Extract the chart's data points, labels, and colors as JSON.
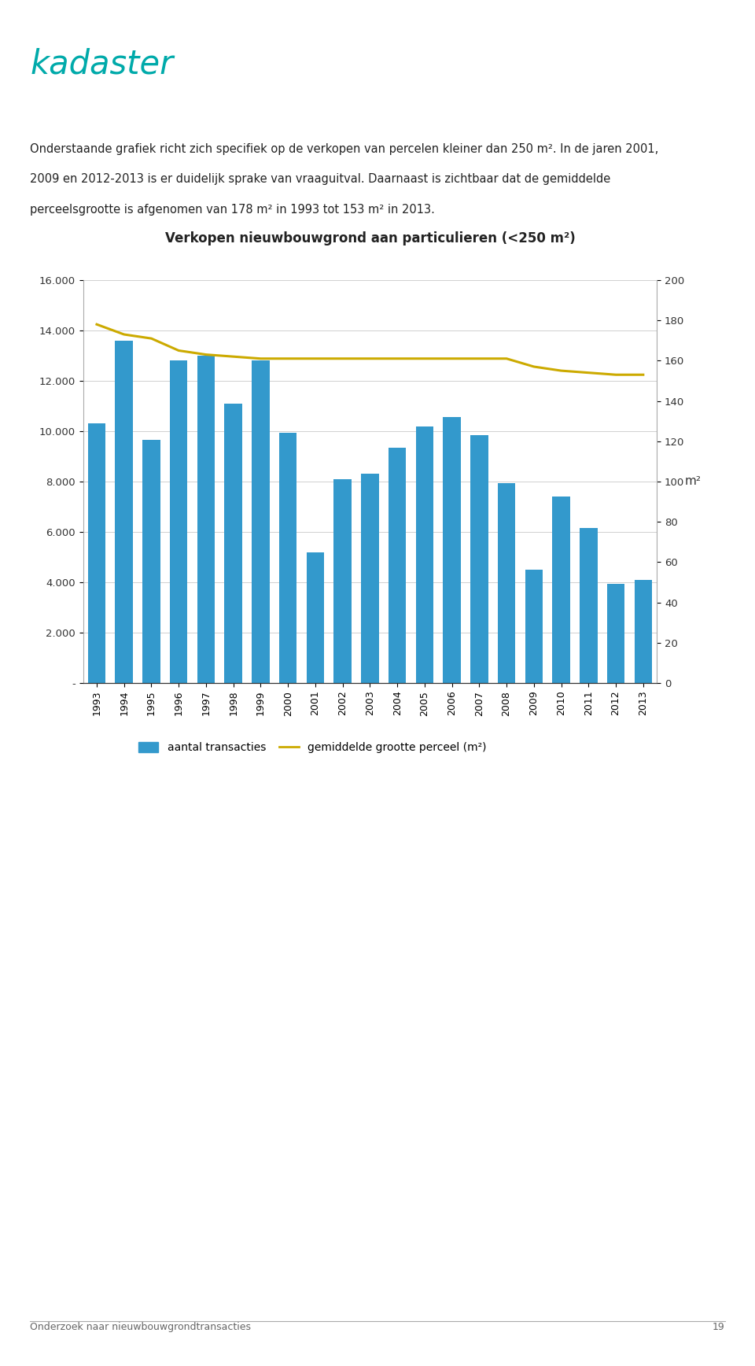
{
  "title": "Verkopen nieuwbouwgrond aan particulieren (<250 m²)",
  "years": [
    1993,
    1994,
    1995,
    1996,
    1997,
    1998,
    1999,
    2000,
    2001,
    2002,
    2003,
    2004,
    2005,
    2006,
    2007,
    2008,
    2009,
    2010,
    2011,
    2012,
    2013
  ],
  "bar_values": [
    10300,
    13600,
    9650,
    12800,
    13000,
    11100,
    12800,
    9950,
    5200,
    8100,
    8300,
    9350,
    10200,
    10550,
    9850,
    7950,
    4500,
    7400,
    6150,
    3950,
    4100
  ],
  "line_values": [
    178,
    173,
    171,
    165,
    163,
    162,
    161,
    161,
    161,
    161,
    161,
    161,
    161,
    161,
    161,
    161,
    157,
    155,
    154,
    153,
    153
  ],
  "bar_color": "#3399CC",
  "line_color": "#CCAA00",
  "left_ylim": [
    0,
    16000
  ],
  "right_ylim": [
    0,
    200
  ],
  "left_yticks": [
    0,
    2000,
    4000,
    6000,
    8000,
    10000,
    12000,
    14000,
    16000
  ],
  "left_yticklabels": [
    "-",
    "2.000",
    "4.000",
    "6.000",
    "8.000",
    "10.000",
    "12.000",
    "14.000",
    "16.000"
  ],
  "right_yticks": [
    0,
    20,
    40,
    60,
    80,
    100,
    120,
    140,
    160,
    180,
    200
  ],
  "right_yticklabels": [
    "0",
    "20",
    "40",
    "60",
    "80",
    "100",
    "120",
    "140",
    "160",
    "180",
    "200"
  ],
  "right_ylabel": "m²",
  "legend_bar_label": "aantal transacties",
  "legend_line_label": "gemiddelde grootte perceel (m²)",
  "header_line1": "Onderstaande grafiek richt zich specifiek op de verkopen van percelen kleiner dan 250 m². In de jaren 2001,",
  "header_line2": "2009 en 2012-2013 is er duidelijk sprake van vraaguitval. Daarnaast is zichtbaar dat de gemiddelde",
  "header_line3": "perceelsgrootte is afgenomen van 178 m² in 1993 tot 153 m² in 2013.",
  "footer_text": "Onderzoek naar nieuwbouwgrondtransacties",
  "footer_page": "19",
  "logo_text": "kadaster",
  "background_color": "#ffffff",
  "grid_color": "#d0d0d0"
}
